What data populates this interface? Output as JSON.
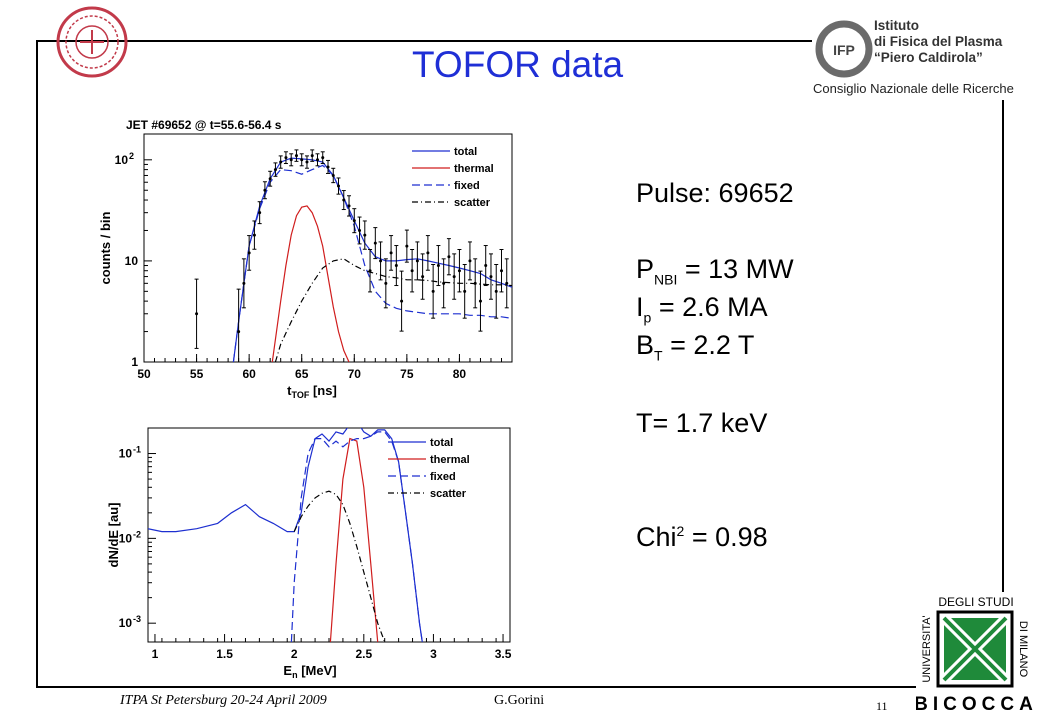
{
  "slide": {
    "title": "TOFOR data",
    "footer_left": "ITPA St Petersburg 20-24 April 2009",
    "footer_author": "G.Gorini",
    "page_number": "11"
  },
  "logos": {
    "institute_line1": "Istituto",
    "institute_line2": "di Fisica del Plasma",
    "institute_line3": "“Piero Caldirola”",
    "institute_sub": "Consiglio Nazionale delle Ricerche",
    "institute_mark": "IFP",
    "univ_top": "DEGLI STUDI",
    "univ_left": "UNIVERSITA'",
    "univ_right": "DI MILANO",
    "univ_bottom": "BICOCCA"
  },
  "params": {
    "pulse": "Pulse: 69652",
    "pnbi_sym": "P",
    "pnbi_sub": "NBI",
    "pnbi_val": " = 13 MW",
    "ip_sym": "I",
    "ip_sub": "p",
    "ip_val": " = 2.6 MA",
    "bt_sym": "B",
    "bt_sub": "T",
    "bt_val": " = 2.2 T",
    "temp": "T= 1.7 keV",
    "chi_sym": "Chi",
    "chi_sup": "2",
    "chi_val": " = 0.98"
  },
  "chart_data": [
    {
      "type": "line",
      "title": "JET #69652 @ t=55.6-56.4 s",
      "xlabel_main": "t",
      "xlabel_sub": "TOF",
      "xlabel_unit": " [ns]",
      "ylabel": "counts / bin",
      "x_range": [
        50,
        85
      ],
      "y_log": true,
      "y_range": [
        1,
        180
      ],
      "x_ticks": [
        "50",
        "55",
        "60",
        "65",
        "70",
        "75",
        "80"
      ],
      "x_tick_values": [
        50,
        55,
        60,
        65,
        70,
        75,
        80
      ],
      "y_ticks": [
        {
          "value": 1,
          "label": "1"
        },
        {
          "value": 10,
          "label": "10"
        },
        {
          "value": 100,
          "label": "10",
          "sup": "2"
        }
      ],
      "legend": [
        {
          "name": "total",
          "color": "#1d2fd0",
          "dash": ""
        },
        {
          "name": "thermal",
          "color": "#d01d1d",
          "dash": ""
        },
        {
          "name": "fixed",
          "color": "#1d2fd0",
          "dash": "8,4"
        },
        {
          "name": "scatter",
          "color": "#000000",
          "dash": "6,3,1,3"
        }
      ],
      "series": [
        {
          "name": "total",
          "color": "#1d2fd0",
          "dash": "",
          "x": [
            58.5,
            59,
            59.5,
            60,
            61,
            62,
            63,
            64,
            65,
            66,
            67,
            68,
            69,
            70,
            71,
            72,
            73,
            74,
            75,
            76,
            77,
            78,
            79,
            80,
            81,
            82,
            83,
            84,
            85
          ],
          "y": [
            1,
            2.5,
            6,
            14,
            35,
            65,
            95,
            104,
            102,
            100,
            95,
            70,
            42,
            25,
            15,
            11,
            10,
            10,
            10.3,
            10.5,
            10,
            9.5,
            9,
            8.5,
            8,
            7.5,
            6.5,
            6,
            5.5
          ]
        },
        {
          "name": "thermal",
          "color": "#d01d1d",
          "dash": "",
          "x": [
            62.2,
            62.6,
            63,
            63.5,
            64,
            64.5,
            65,
            65.5,
            66,
            66.5,
            67,
            67.5,
            68,
            68.5,
            69,
            69.5
          ],
          "y": [
            1,
            2,
            4,
            9,
            18,
            28,
            34,
            35,
            30,
            22,
            14,
            7,
            3.5,
            2,
            1.3,
            1
          ]
        },
        {
          "name": "fixed",
          "color": "#1d2fd0",
          "dash": "8,4",
          "x": [
            58.5,
            59,
            59.5,
            60,
            61,
            62,
            63,
            64,
            65,
            66,
            67,
            68,
            69,
            70,
            71,
            72,
            73,
            74,
            75,
            76,
            77,
            78,
            79,
            80,
            81,
            82,
            83,
            84,
            85
          ],
          "y": [
            1,
            2.5,
            6,
            14,
            33,
            60,
            80,
            78,
            72,
            80,
            88,
            70,
            42,
            22,
            9,
            5,
            3.8,
            3.4,
            3.2,
            3.1,
            3,
            3,
            3,
            3,
            2.9,
            2.9,
            2.8,
            2.8,
            2.7
          ]
        },
        {
          "name": "scatter",
          "color": "#000000",
          "dash": "6,3,1,3",
          "x": [
            62.5,
            63,
            64,
            65,
            66,
            67,
            68,
            69,
            70,
            71,
            72,
            73,
            74,
            75,
            76,
            77,
            78,
            79,
            80,
            81,
            82,
            83,
            84,
            85
          ],
          "y": [
            1,
            1.5,
            2.5,
            4,
            6,
            8.5,
            10,
            10.5,
            9,
            8,
            7.5,
            7,
            6.8,
            6.5,
            6.5,
            6.4,
            6.2,
            6.1,
            6,
            6,
            5.9,
            5.8,
            5.8,
            5.7
          ]
        }
      ],
      "points": {
        "x": [
          55,
          59,
          59.5,
          60,
          60.5,
          61,
          61.5,
          62,
          62.5,
          63,
          63.5,
          64,
          64.5,
          65,
          65.5,
          66,
          66.5,
          67,
          67.5,
          68,
          68.5,
          69,
          69.5,
          70,
          70.5,
          71,
          71.5,
          72,
          72.5,
          73,
          73.5,
          74,
          74.5,
          75,
          75.5,
          76,
          76.5,
          77,
          77.5,
          78,
          78.5,
          79,
          79.5,
          80,
          80.5,
          81,
          81.5,
          82,
          82.5,
          83,
          83.5,
          84,
          84.5
        ],
        "y": [
          3,
          2,
          6,
          12,
          18,
          30,
          50,
          65,
          80,
          95,
          105,
          100,
          110,
          100,
          95,
          110,
          100,
          105,
          85,
          70,
          55,
          40,
          35,
          25,
          20,
          18,
          8,
          15,
          10,
          6,
          12,
          9,
          4,
          14,
          8,
          10,
          7,
          12,
          5,
          9,
          6,
          11,
          7,
          8,
          5,
          10,
          6,
          4,
          9,
          7,
          5,
          8,
          6
        ]
      }
    },
    {
      "type": "line",
      "title": "",
      "xlabel_main": "E",
      "xlabel_sub": "n",
      "xlabel_unit": " [MeV]",
      "ylabel": "dN/dE [au]",
      "x_range": [
        0.95,
        3.55
      ],
      "y_log": true,
      "y_range": [
        0.0006,
        0.2
      ],
      "x_ticks": [
        "1",
        "1.5",
        "2",
        "2.5",
        "3",
        "3.5"
      ],
      "x_tick_values": [
        1,
        1.5,
        2,
        2.5,
        3,
        3.5
      ],
      "y_ticks": [
        {
          "value": 0.001,
          "label": "10",
          "sup": "-3"
        },
        {
          "value": 0.01,
          "label": "10",
          "sup": "-2"
        },
        {
          "value": 0.1,
          "label": "10",
          "sup": "-1"
        }
      ],
      "legend": [
        {
          "name": "total",
          "color": "#1d2fd0",
          "dash": ""
        },
        {
          "name": "thermal",
          "color": "#d01d1d",
          "dash": ""
        },
        {
          "name": "fixed",
          "color": "#1d2fd0",
          "dash": "8,4"
        },
        {
          "name": "scatter",
          "color": "#000000",
          "dash": "6,3,1,3"
        }
      ],
      "series": [
        {
          "name": "total",
          "color": "#1d2fd0",
          "dash": "",
          "x": [
            0.95,
            1.05,
            1.15,
            1.3,
            1.45,
            1.55,
            1.65,
            1.75,
            1.85,
            1.95,
            2.0,
            2.05,
            2.1,
            2.15,
            2.2,
            2.25,
            2.3,
            2.35,
            2.4,
            2.45,
            2.5,
            2.55,
            2.6,
            2.65,
            2.7,
            2.75,
            2.8,
            2.85,
            2.9,
            2.92
          ],
          "y": [
            0.013,
            0.012,
            0.012,
            0.013,
            0.015,
            0.02,
            0.025,
            0.018,
            0.015,
            0.012,
            0.012,
            0.02,
            0.07,
            0.15,
            0.17,
            0.14,
            0.18,
            0.17,
            0.22,
            0.24,
            0.18,
            0.16,
            0.19,
            0.19,
            0.15,
            0.08,
            0.02,
            0.005,
            0.001,
            0.0006
          ]
        },
        {
          "name": "thermal",
          "color": "#d01d1d",
          "dash": "",
          "x": [
            2.26,
            2.3,
            2.35,
            2.4,
            2.45,
            2.5,
            2.55,
            2.6
          ],
          "y": [
            0.0006,
            0.005,
            0.05,
            0.15,
            0.14,
            0.04,
            0.005,
            0.0006
          ]
        },
        {
          "name": "fixed",
          "color": "#1d2fd0",
          "dash": "8,4",
          "x": [
            1.98,
            2.0,
            2.05,
            2.1,
            2.15,
            2.2,
            2.25,
            2.3,
            2.35,
            2.4,
            2.45,
            2.5,
            2.55,
            2.6,
            2.65,
            2.7,
            2.75,
            2.8,
            2.85,
            2.9,
            2.92
          ],
          "y": [
            0.0006,
            0.003,
            0.03,
            0.1,
            0.15,
            0.15,
            0.12,
            0.14,
            0.12,
            0.14,
            0.15,
            0.15,
            0.16,
            0.18,
            0.18,
            0.14,
            0.08,
            0.02,
            0.005,
            0.001,
            0.0006
          ]
        },
        {
          "name": "scatter",
          "color": "#000000",
          "dash": "6,3,1,3",
          "x": [
            2.0,
            2.05,
            2.1,
            2.15,
            2.2,
            2.25,
            2.3,
            2.35,
            2.4,
            2.45,
            2.5,
            2.55,
            2.6,
            2.65
          ],
          "y": [
            0.012,
            0.018,
            0.024,
            0.03,
            0.034,
            0.036,
            0.033,
            0.025,
            0.015,
            0.008,
            0.004,
            0.002,
            0.001,
            0.0006
          ]
        }
      ]
    }
  ]
}
